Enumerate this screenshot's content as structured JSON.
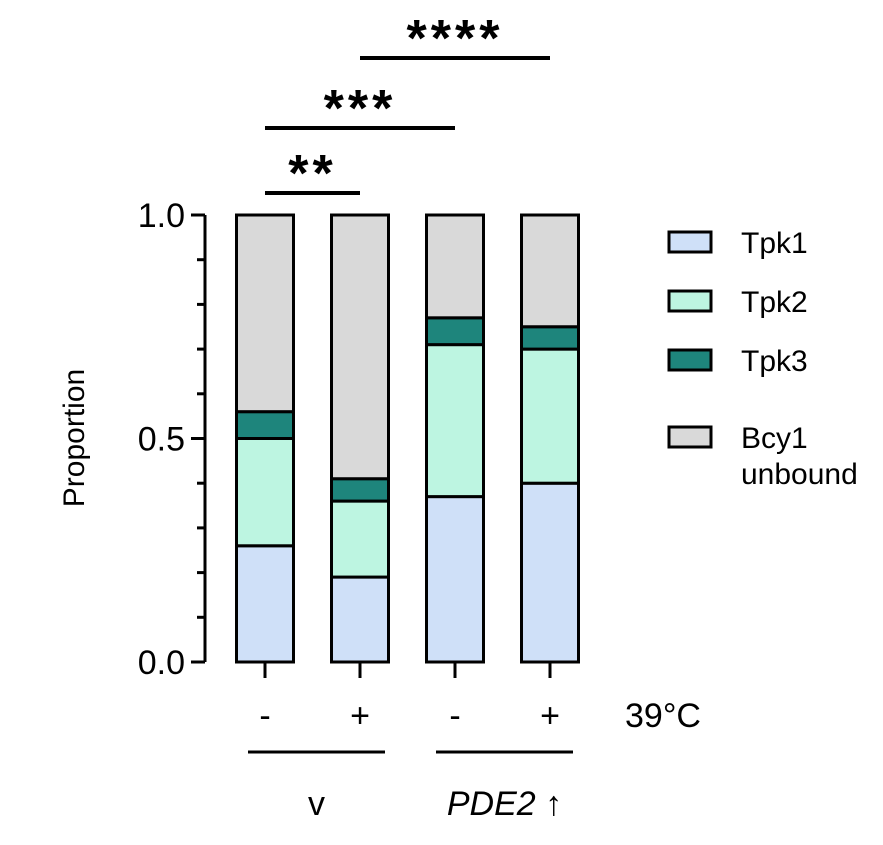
{
  "chart_data": {
    "type": "bar",
    "stacked": true,
    "ylabel": "Proportion",
    "ylim": [
      0,
      1
    ],
    "yticks": [
      "0.0",
      "0.5",
      "1.0"
    ],
    "bars": [
      {
        "temp": "-",
        "group": "v"
      },
      {
        "temp": "+",
        "group": "v"
      },
      {
        "temp": "-",
        "group": "PDE2 ↑"
      },
      {
        "temp": "+",
        "group": "PDE2 ↑"
      }
    ],
    "series": [
      {
        "name": "Tpk1",
        "color": "#cfe0f8",
        "values": [
          0.26,
          0.19,
          0.37,
          0.4
        ]
      },
      {
        "name": "Tpk2",
        "color": "#bdf5e1",
        "values": [
          0.24,
          0.17,
          0.34,
          0.3
        ]
      },
      {
        "name": "Tpk3",
        "color": "#1e857c",
        "values": [
          0.06,
          0.05,
          0.06,
          0.05
        ]
      },
      {
        "name": "Bcy1 unbound",
        "color": "#d9d9d9",
        "values": [
          0.44,
          0.59,
          0.23,
          0.25
        ]
      }
    ],
    "legend_lines": [
      [
        "Tpk1"
      ],
      [
        "Tpk2"
      ],
      [
        "Tpk3"
      ],
      [
        "Bcy1",
        "unbound"
      ]
    ],
    "temperature_label": "39°C",
    "groups": [
      {
        "label": "v",
        "italic": false,
        "bars": [
          0,
          1
        ]
      },
      {
        "label": "PDE2 ↑",
        "italic": true,
        "bars": [
          2,
          3
        ]
      }
    ],
    "significance": [
      {
        "from": 0,
        "to": 1,
        "stars": "**"
      },
      {
        "from": 0,
        "to": 2,
        "stars": "***"
      },
      {
        "from": 1,
        "to": 3,
        "stars": "****"
      }
    ],
    "legend_placement": "right"
  }
}
